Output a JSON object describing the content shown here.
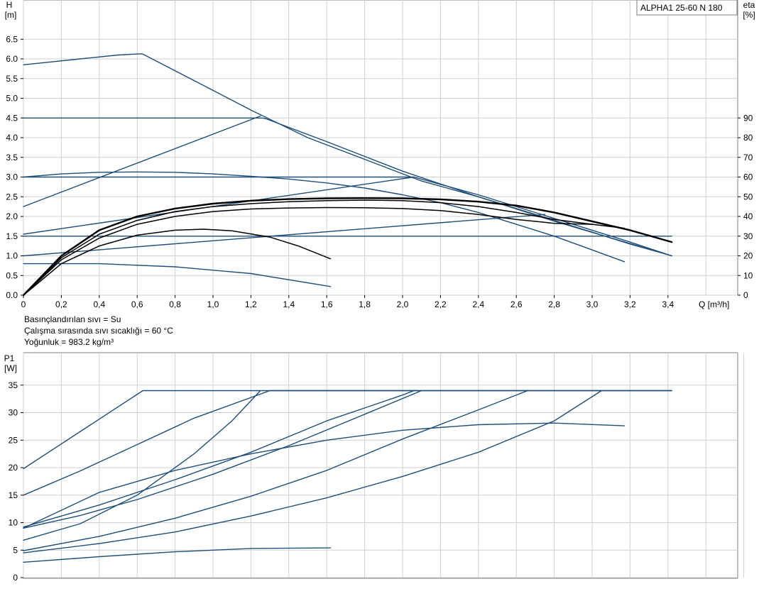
{
  "pump_model": "ALPHA1 25-60 N 180",
  "fluid_info": [
    "Basınçlandırılan sıvı = Su",
    "Çalışma sırasında sıvı sıcaklığı = 60 °C",
    "Yoğunluk = 983.2 kg/m³"
  ],
  "colors": {
    "series": "#1f4e79",
    "efficiency": "#000000",
    "grid": "#d0d0d0",
    "frame": "#7f7f7f"
  },
  "chart_data": [
    {
      "type": "line",
      "title": "ALPHA1 25-60 N 180",
      "xlabel": "Q [m³/h]",
      "ylabel_top": "H",
      "ylabel_unit": "[m]",
      "y2label_top": "eta",
      "y2label_unit": "[%]",
      "xlim": [
        0,
        3.8
      ],
      "ylim": [
        0,
        7.2
      ],
      "y2lim": [
        0,
        150
      ],
      "x_ticks": [
        "0",
        "0,2",
        "0,4",
        "0,6",
        "0,8",
        "1,0",
        "1,2",
        "1,4",
        "1,6",
        "1,8",
        "2,0",
        "2,2",
        "2,4",
        "2,6",
        "2,8",
        "3,0",
        "3,2",
        "3,4"
      ],
      "y_ticks": [
        "0.0",
        "0.5",
        "1.0",
        "1.5",
        "2.0",
        "2.5",
        "3.0",
        "3.5",
        "4.0",
        "4.5",
        "5.0",
        "5.5",
        "6.0",
        "6.5"
      ],
      "y2_ticks": [
        "0",
        "10",
        "20",
        "30",
        "40",
        "50",
        "60",
        "70",
        "80",
        "90"
      ],
      "grid": true,
      "head_curves": [
        {
          "x": [
            0,
            0.3,
            0.5,
            0.62,
            0.63,
            0.9,
            1.2,
            1.5,
            1.8,
            2.1,
            2.4,
            2.7,
            3.0,
            3.2,
            3.42
          ],
          "y": [
            5.85,
            6.0,
            6.1,
            6.13,
            6.12,
            5.45,
            4.7,
            4.0,
            3.45,
            2.9,
            2.5,
            2.05,
            1.6,
            1.3,
            1.0
          ]
        },
        {
          "x": [
            0,
            1.26,
            1.28,
            1.6,
            2.0,
            2.4,
            2.8,
            3.42
          ],
          "y": [
            4.5,
            4.5,
            4.48,
            3.9,
            3.15,
            2.5,
            1.88,
            1.0
          ]
        },
        {
          "x": [
            0,
            2.06,
            2.4,
            2.8,
            3.2,
            3.42
          ],
          "y": [
            3.0,
            3.0,
            2.55,
            1.95,
            1.35,
            1.0
          ]
        },
        {
          "x": [
            0,
            0.2,
            0.4,
            0.6,
            0.8,
            1.0,
            1.2,
            1.4,
            1.6,
            1.8,
            2.0,
            2.2,
            2.4,
            2.6,
            2.8,
            3.0,
            3.17
          ],
          "y": [
            3.0,
            3.08,
            3.12,
            3.13,
            3.12,
            3.08,
            3.02,
            2.95,
            2.85,
            2.72,
            2.55,
            2.35,
            2.1,
            1.8,
            1.5,
            1.15,
            0.85
          ]
        },
        {
          "x": [
            0,
            3.42
          ],
          "y": [
            1.5,
            1.5
          ]
        },
        {
          "x": [
            0,
            0.4,
            0.8,
            1.2,
            1.62
          ],
          "y": [
            0.8,
            0.8,
            0.72,
            0.55,
            0.22
          ]
        }
      ],
      "efficiency_curves": [
        {
          "x": [
            0,
            0.2,
            0.4,
            0.6,
            0.8,
            1.0,
            1.2,
            1.4,
            1.6,
            1.8,
            2.0,
            2.2,
            2.4,
            2.6,
            2.8,
            3.0,
            3.2,
            3.42
          ],
          "y": [
            0,
            20,
            33,
            40,
            44,
            46.5,
            48,
            48.8,
            49.2,
            49.3,
            49.2,
            48.7,
            47.5,
            45.5,
            42,
            37.5,
            33,
            27
          ]
        },
        {
          "x": [
            0,
            0.2,
            0.4,
            0.6,
            0.8,
            1.0,
            1.2,
            1.4,
            1.6,
            1.8,
            2.0,
            2.2,
            2.4,
            2.6,
            2.8,
            3.0,
            3.17
          ],
          "y": [
            0,
            19,
            31,
            38,
            42.5,
            45,
            46.5,
            47.5,
            48,
            48.3,
            48,
            47,
            45,
            42,
            38.5,
            36,
            34
          ]
        },
        {
          "x": [
            0,
            0.2,
            0.4,
            0.6,
            0.8,
            1.0,
            1.2,
            1.4,
            1.6,
            1.8,
            2.0,
            2.2,
            2.4,
            2.6,
            2.8,
            3.0
          ],
          "y": [
            0,
            18,
            29,
            36,
            40,
            42.5,
            43.8,
            44.3,
            44.5,
            44.4,
            44,
            43,
            41,
            38.5,
            36.5,
            36
          ]
        },
        {
          "x": [
            0,
            0.2,
            0.4,
            0.6,
            0.8,
            0.95,
            1.1,
            1.3,
            1.45,
            1.62
          ],
          "y": [
            0,
            16,
            25,
            30.5,
            33,
            33.5,
            32.7,
            29.5,
            25,
            18.5
          ]
        }
      ],
      "efficiency_lines": [
        {
          "x": [
            0,
            1.25
          ],
          "y": [
            45,
            91
          ]
        },
        {
          "x": [
            0,
            2.06
          ],
          "y": [
            31,
            60
          ]
        },
        {
          "x": [
            0,
            2.75
          ],
          "y": [
            20,
            41
          ]
        }
      ]
    },
    {
      "type": "line",
      "ylabel_top": "P1",
      "ylabel_unit": "[W]",
      "xlim": [
        0,
        3.8
      ],
      "ylim": [
        0,
        39
      ],
      "y_ticks": [
        "0",
        "5",
        "10",
        "15",
        "20",
        "25",
        "30",
        "35"
      ],
      "grid": true,
      "power_curves": [
        {
          "x": [
            0,
            0.63,
            3.42
          ],
          "y": [
            19.8,
            34,
            34
          ]
        },
        {
          "x": [
            0,
            0.3,
            0.6,
            0.9,
            1.3,
            3.42
          ],
          "y": [
            15,
            19.4,
            24.2,
            29,
            34,
            34
          ]
        },
        {
          "x": [
            0,
            0.3,
            0.6,
            0.9,
            1.1,
            1.25
          ],
          "y": [
            6.8,
            9.8,
            15,
            22.5,
            28.5,
            34
          ]
        },
        {
          "x": [
            0,
            0.4,
            0.8,
            1.2,
            1.6,
            2.0,
            2.06
          ],
          "y": [
            9.2,
            13.2,
            17.8,
            22.8,
            28.5,
            33.2,
            34
          ]
        },
        {
          "x": [
            0,
            0.3,
            0.6,
            1.0,
            1.4,
            1.8,
            2.1
          ],
          "y": [
            9,
            11.3,
            14.2,
            18.8,
            24,
            29.7,
            34
          ]
        },
        {
          "x": [
            0,
            0.4,
            0.8,
            1.2,
            1.6,
            2.0,
            2.4,
            2.8,
            3.17
          ],
          "y": [
            9,
            15.5,
            19.5,
            22.5,
            25,
            26.8,
            27.8,
            28.1,
            27.6
          ]
        },
        {
          "x": [
            0,
            0.4,
            0.8,
            1.2,
            1.6,
            2.0,
            2.4,
            2.66
          ],
          "y": [
            4.9,
            7.5,
            10.8,
            14.8,
            19.5,
            25.2,
            30.5,
            34
          ]
        },
        {
          "x": [
            0,
            0.4,
            0.8,
            1.2,
            1.6,
            2.0,
            2.4,
            2.8,
            3.05
          ],
          "y": [
            4.5,
            6.2,
            8.3,
            11.2,
            14.5,
            18.4,
            22.8,
            28.5,
            34
          ]
        },
        {
          "x": [
            0,
            0.4,
            0.8,
            1.2,
            1.62
          ],
          "y": [
            2.8,
            3.8,
            4.7,
            5.3,
            5.4
          ]
        }
      ]
    }
  ]
}
